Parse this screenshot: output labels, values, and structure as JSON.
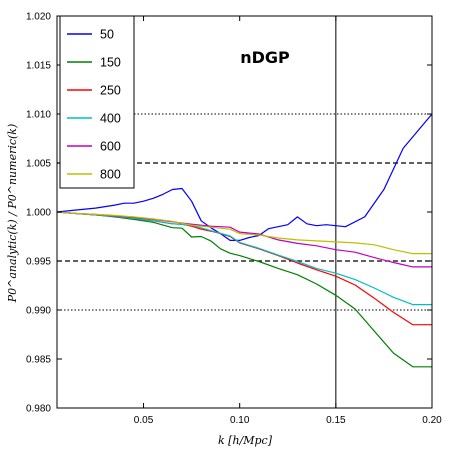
{
  "chart_data": {
    "type": "line",
    "title": "nDGP",
    "xlabel": "k [h/Mpc]",
    "ylabel": "P0^analytic(k) / P0^numeric(k)",
    "xlim": [
      0.005,
      0.2
    ],
    "ylim": [
      0.98,
      1.02
    ],
    "xticks": [
      0.05,
      0.1,
      0.15,
      0.2
    ],
    "xtick_labels": [
      "0.05",
      "0.10",
      "0.15",
      "0.20"
    ],
    "yticks": [
      0.98,
      0.985,
      0.99,
      0.995,
      1.0,
      1.005,
      1.01,
      1.015,
      1.02
    ],
    "ytick_labels": [
      "0.980",
      "0.985",
      "0.990",
      "0.995",
      "1.000",
      "1.005",
      "1.010",
      "1.015",
      "1.020"
    ],
    "grid": false,
    "legend_position": "top-left",
    "reference_lines": {
      "dashed_y": [
        0.995,
        1.005
      ],
      "dotted_y": [
        0.99,
        1.01
      ],
      "solid_x": [
        0.15
      ]
    },
    "series": [
      {
        "name": "50",
        "color": "#0000ff",
        "x": [
          0.005,
          0.015,
          0.025,
          0.035,
          0.04,
          0.045,
          0.05,
          0.055,
          0.06,
          0.065,
          0.07,
          0.075,
          0.08,
          0.085,
          0.09,
          0.095,
          0.1,
          0.105,
          0.11,
          0.115,
          0.12,
          0.125,
          0.13,
          0.135,
          0.14,
          0.145,
          0.15,
          0.155,
          0.165,
          0.175,
          0.185,
          0.2
        ],
        "y": [
          1.0,
          1.0002,
          1.0004,
          1.0007,
          1.0009,
          1.0009,
          1.0011,
          1.0014,
          1.0018,
          1.0023,
          1.0024,
          1.0011,
          0.9991,
          0.9984,
          0.9978,
          0.9971,
          0.9971,
          0.9974,
          0.9976,
          0.9983,
          0.9985,
          0.9987,
          0.9995,
          0.9988,
          0.9986,
          0.9987,
          0.9986,
          0.9985,
          0.9995,
          1.0023,
          1.0065,
          1.01
        ]
      },
      {
        "name": "150",
        "color": "#008000",
        "x": [
          0.005,
          0.015,
          0.025,
          0.035,
          0.045,
          0.055,
          0.065,
          0.07,
          0.075,
          0.08,
          0.085,
          0.09,
          0.095,
          0.1,
          0.105,
          0.11,
          0.12,
          0.13,
          0.14,
          0.15,
          0.16,
          0.17,
          0.18,
          0.19,
          0.2
        ],
        "y": [
          1.0,
          0.99985,
          0.9997,
          0.9995,
          0.99925,
          0.99895,
          0.9984,
          0.99835,
          0.99745,
          0.9975,
          0.99705,
          0.99625,
          0.9958,
          0.99555,
          0.99525,
          0.99495,
          0.99425,
          0.9936,
          0.99265,
          0.9915,
          0.9901,
          0.98785,
          0.9856,
          0.9842,
          0.9842
        ]
      },
      {
        "name": "250",
        "color": "#ff0000",
        "x": [
          0.005,
          0.015,
          0.025,
          0.035,
          0.045,
          0.055,
          0.065,
          0.07,
          0.075,
          0.08,
          0.085,
          0.09,
          0.095,
          0.1,
          0.11,
          0.12,
          0.13,
          0.14,
          0.15,
          0.16,
          0.17,
          0.18,
          0.19,
          0.2
        ],
        "y": [
          1.0,
          0.99985,
          0.9997,
          0.99955,
          0.99935,
          0.9991,
          0.9988,
          0.99875,
          0.99855,
          0.99825,
          0.99805,
          0.9978,
          0.9975,
          0.99685,
          0.99625,
          0.99555,
          0.9948,
          0.9941,
          0.99345,
          0.99255,
          0.9912,
          0.98975,
          0.9885,
          0.9885
        ]
      },
      {
        "name": "400",
        "color": "#00bfbf",
        "x": [
          0.005,
          0.015,
          0.025,
          0.035,
          0.045,
          0.055,
          0.065,
          0.075,
          0.085,
          0.095,
          0.1,
          0.11,
          0.12,
          0.13,
          0.14,
          0.15,
          0.16,
          0.17,
          0.18,
          0.19,
          0.2
        ],
        "y": [
          1.0,
          0.99985,
          0.9997,
          0.99955,
          0.99935,
          0.9991,
          0.9988,
          0.99865,
          0.9981,
          0.99755,
          0.9969,
          0.9963,
          0.9956,
          0.99495,
          0.99425,
          0.99375,
          0.9931,
          0.99225,
          0.9913,
          0.99055,
          0.99055
        ]
      },
      {
        "name": "600",
        "color": "#bf00bf",
        "x": [
          0.005,
          0.015,
          0.025,
          0.035,
          0.045,
          0.055,
          0.065,
          0.075,
          0.085,
          0.095,
          0.1,
          0.11,
          0.12,
          0.13,
          0.14,
          0.15,
          0.16,
          0.17,
          0.18,
          0.19,
          0.2
        ],
        "y": [
          1.0,
          0.99985,
          0.99975,
          0.9996,
          0.99945,
          0.99925,
          0.999,
          0.99875,
          0.99855,
          0.99845,
          0.99795,
          0.99775,
          0.99715,
          0.9968,
          0.99655,
          0.99615,
          0.9959,
          0.99535,
          0.99485,
          0.9944,
          0.9944
        ]
      },
      {
        "name": "800",
        "color": "#bfbf00",
        "x": [
          0.005,
          0.015,
          0.025,
          0.035,
          0.045,
          0.055,
          0.065,
          0.075,
          0.085,
          0.095,
          0.1,
          0.11,
          0.12,
          0.13,
          0.14,
          0.15,
          0.16,
          0.17,
          0.18,
          0.19,
          0.2
        ],
        "y": [
          1.0,
          0.99985,
          0.99975,
          0.99965,
          0.9995,
          0.9993,
          0.99905,
          0.99865,
          0.99845,
          0.99825,
          0.9978,
          0.99765,
          0.99735,
          0.99715,
          0.99705,
          0.99695,
          0.99685,
          0.99665,
          0.99615,
          0.99575,
          0.99575
        ]
      }
    ]
  }
}
